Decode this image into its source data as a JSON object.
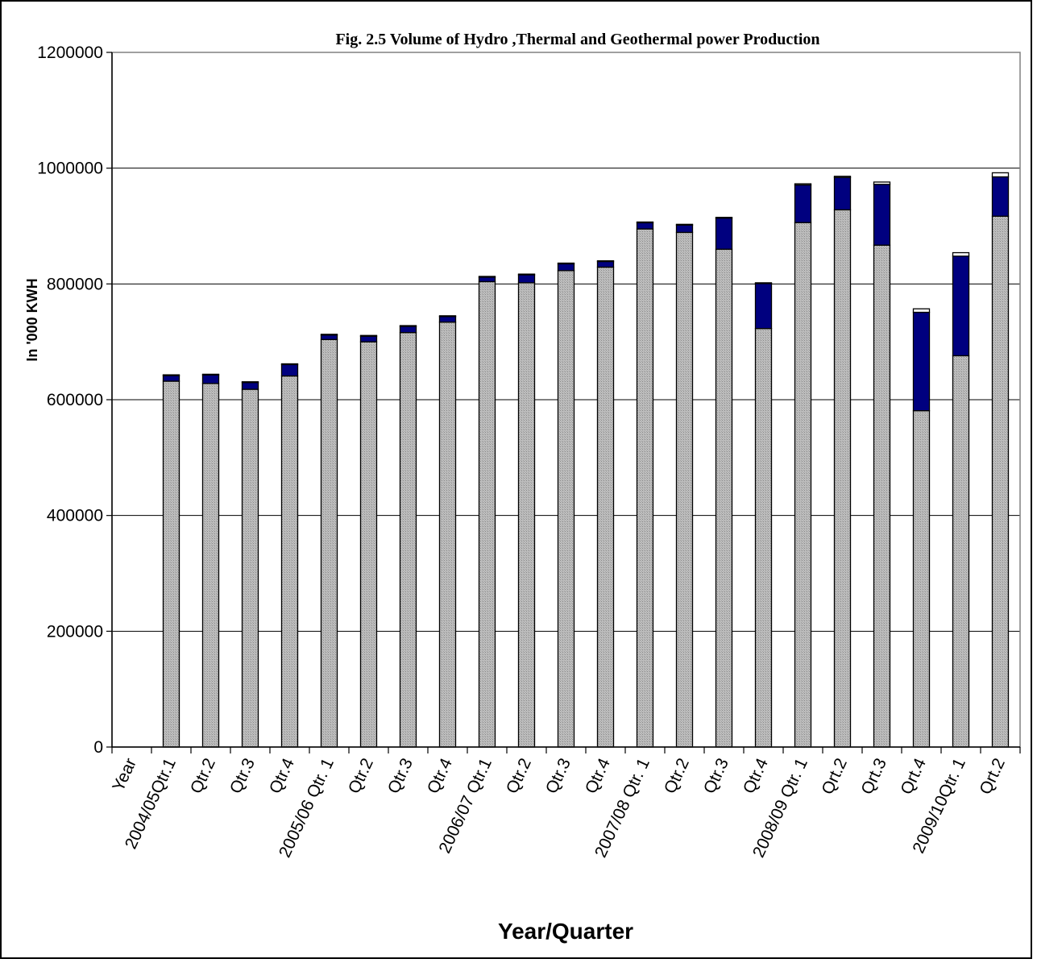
{
  "chart_data": {
    "type": "bar",
    "stacked": true,
    "title": "Fig. 2.5 Volume of Hydro ,Thermal and Geothermal power Production",
    "xlabel": "Year/Quarter",
    "ylabel": "In '000 KWH",
    "ylim": [
      0,
      1200000
    ],
    "yticks": [
      0,
      200000,
      400000,
      600000,
      800000,
      1000000,
      1200000
    ],
    "ytick_labels": [
      "0",
      "200000",
      "400000",
      "600000",
      "800000",
      "1000000",
      "1200000"
    ],
    "grid": true,
    "categories": [
      "Year",
      "2004/05Qtr.1",
      "Qtr.2",
      "Qtr.3",
      "Qtr.4",
      "2005/06 Qtr. 1",
      "Qtr.2",
      "Qtr.3",
      "Qtr.4",
      "2006/07 Qtr.1",
      "Qtr.2",
      "Qtr.3",
      "Qtr.4",
      "2007/08 Qtr. 1",
      "Qtr.2",
      "Qtr.3",
      "Qtr.4",
      "2008/09 Qtr. 1",
      "Qrt.2",
      "Qrt.3",
      "Qrt.4",
      "2009/10Qtr. 1",
      "Qrt.2"
    ],
    "series": [
      {
        "color": "#bdbdbd",
        "values": [
          0,
          632000,
          628000,
          618000,
          641000,
          704000,
          700000,
          716000,
          734000,
          804000,
          802000,
          823000,
          829000,
          895000,
          889000,
          860000,
          723000,
          906000,
          928000,
          867000,
          581000,
          676000,
          917000
        ]
      },
      {
        "color": "#00007f",
        "values": [
          0,
          10000,
          15000,
          12000,
          20000,
          8000,
          10000,
          11000,
          10000,
          8000,
          14000,
          12000,
          10000,
          11000,
          13000,
          54000,
          78000,
          65000,
          56000,
          105000,
          170000,
          172000,
          68000
        ]
      },
      {
        "color": "#ffffff",
        "values": [
          0,
          1000,
          1000,
          1000,
          1000,
          1000,
          1000,
          1000,
          1000,
          1000,
          1000,
          1000,
          1000,
          1000,
          1000,
          1000,
          1000,
          2000,
          2000,
          4000,
          6000,
          6000,
          7000
        ]
      }
    ]
  }
}
